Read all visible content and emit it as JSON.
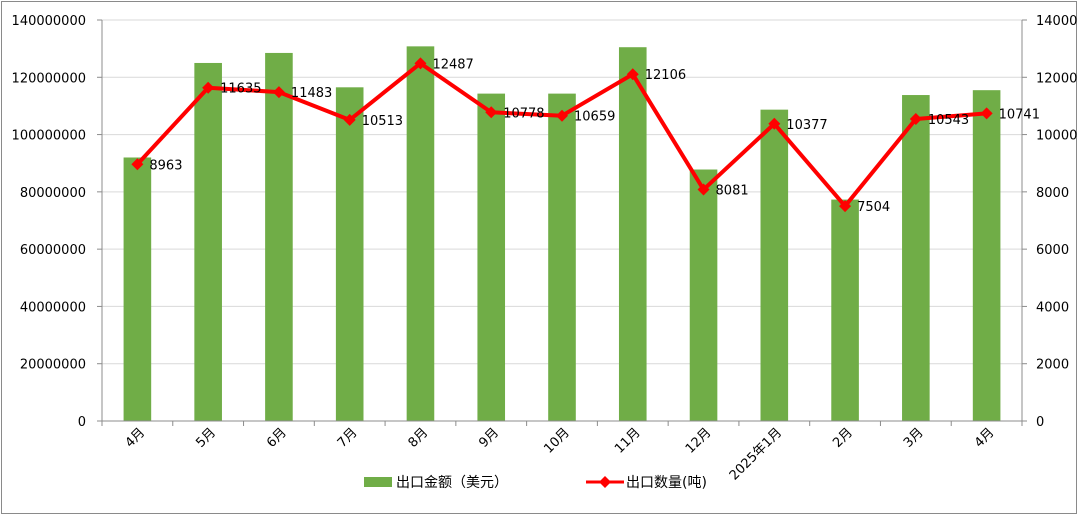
{
  "chart_data": {
    "type": "bar",
    "categories": [
      "4月",
      "5月",
      "6月",
      "7月",
      "8月",
      "9月",
      "10月",
      "11月",
      "12月",
      "2025年1月",
      "2月",
      "3月",
      "4月"
    ],
    "series": [
      {
        "name": "出口金额（美元）",
        "type": "bar",
        "axis": "left",
        "color": "#70ad47",
        "values": [
          92000000,
          125000000,
          128500000,
          116500000,
          130800000,
          114300000,
          114300000,
          130500000,
          87800000,
          108700000,
          77300000,
          113800000,
          115500000
        ]
      },
      {
        "name": "出口数量(吨)",
        "type": "line",
        "axis": "right",
        "color": "#ff0000",
        "marker": "diamond",
        "values": [
          8963,
          11635,
          11483,
          10513,
          12487,
          10778,
          10659,
          12106,
          8081,
          10377,
          7504,
          10543,
          10741
        ],
        "labels": [
          "8963",
          "11635",
          "11483",
          "10513",
          "12487",
          "10778",
          "10659",
          "12106",
          "8081",
          "10377",
          "7504",
          "10543",
          "10741"
        ]
      }
    ],
    "y_left": {
      "min": 0,
      "max": 140000000,
      "ticks": [
        "0",
        "20000000",
        "40000000",
        "60000000",
        "80000000",
        "100000000",
        "120000000",
        "140000000"
      ]
    },
    "y_right": {
      "min": 0,
      "max": 14000,
      "ticks": [
        "0",
        "2000",
        "4000",
        "6000",
        "8000",
        "10000",
        "12000",
        "14000"
      ]
    },
    "grid": true,
    "legend_position": "bottom",
    "colors": {
      "axis": "#8c8c8c",
      "grid": "#d9d9d9"
    }
  }
}
